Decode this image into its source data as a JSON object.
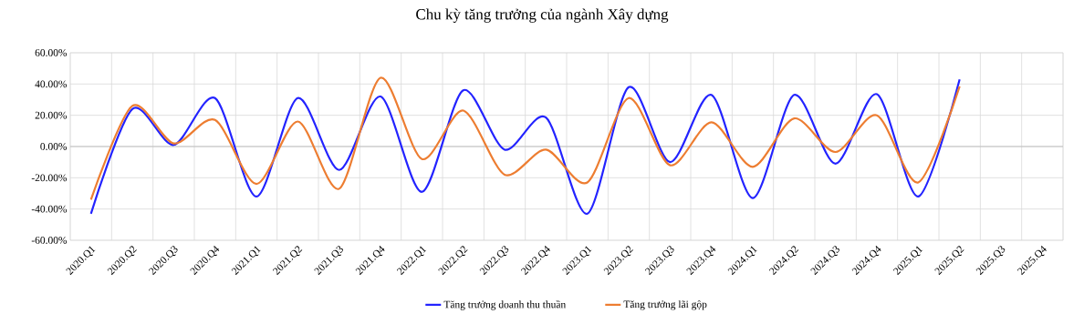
{
  "chart_data": {
    "type": "line",
    "title": "Chu kỳ tăng trưởng của ngành Xây dựng",
    "categories": [
      "2020.Q1",
      "2020.Q2",
      "2020.Q3",
      "2020.Q4",
      "2021.Q1",
      "2021.Q2",
      "2021.Q3",
      "2021.Q4",
      "2022.Q1",
      "2022.Q2",
      "2022.Q3",
      "2022.Q4",
      "2023.Q1",
      "2023.Q2",
      "2023.Q3",
      "2023.Q4",
      "2024.Q1",
      "2024.Q2",
      "2024.Q3",
      "2024.Q4",
      "2025.Q1",
      "2025.Q2",
      "2025.Q3",
      "2025.Q4"
    ],
    "series": [
      {
        "name": "Tăng trưởng doanh thu thuần",
        "color": "#2323ff",
        "values": [
          -43,
          24,
          1,
          31,
          -32,
          31,
          -15,
          32,
          -29,
          36,
          -2,
          18.5,
          -43,
          38,
          -10,
          33,
          -33,
          33,
          -11,
          33.5,
          -32,
          43,
          null,
          null
        ]
      },
      {
        "name": "Tăng trưởng lãi gộp",
        "color": "#ed7d31",
        "values": [
          -34,
          26,
          2,
          17,
          -24,
          16,
          -27,
          44,
          -8,
          23,
          -18,
          -2,
          -23,
          31,
          -12,
          15.5,
          -13,
          18,
          -3.5,
          20,
          -23,
          38.5,
          null,
          null
        ]
      }
    ],
    "ylim": [
      -60,
      60
    ],
    "yticks": [
      {
        "value": -60,
        "label": "-60.00%"
      },
      {
        "value": -40,
        "label": "-40.00%"
      },
      {
        "value": -20,
        "label": "-20.00%"
      },
      {
        "value": 0,
        "label": "0.00%"
      },
      {
        "value": 20,
        "label": "20.00%"
      },
      {
        "value": 40,
        "label": "40.00%"
      },
      {
        "value": 60,
        "label": "60.00%"
      }
    ],
    "grid": true,
    "legend": "bottom",
    "line_style": "solid"
  }
}
